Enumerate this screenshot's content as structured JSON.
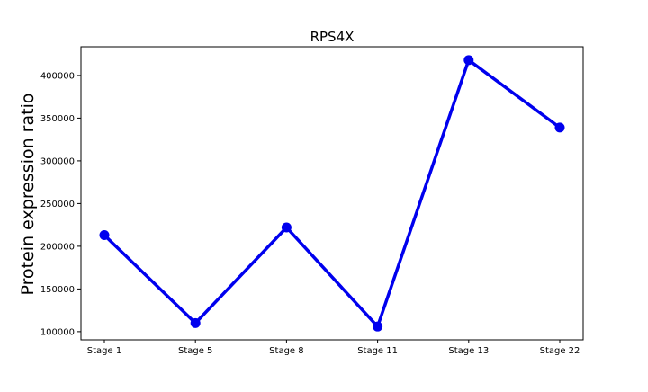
{
  "chart_data": {
    "type": "line",
    "title": "RPS4X",
    "xlabel": "",
    "ylabel": "Protein expression ratio",
    "categories": [
      "Stage 1",
      "Stage 5",
      "Stage 8",
      "Stage 11",
      "Stage 13",
      "Stage 22"
    ],
    "series": [
      {
        "values": [
          213000,
          110000,
          222000,
          106000,
          418000,
          339000
        ]
      }
    ],
    "yticks": [
      100000,
      150000,
      200000,
      250000,
      300000,
      350000,
      400000
    ],
    "ytick_labels": [
      "100000",
      "150000",
      "200000",
      "250000",
      "300000",
      "350000",
      "400000"
    ],
    "ylim": [
      90400,
      433600
    ],
    "grid": false,
    "legend": "none",
    "line_color": "#0000ee"
  }
}
